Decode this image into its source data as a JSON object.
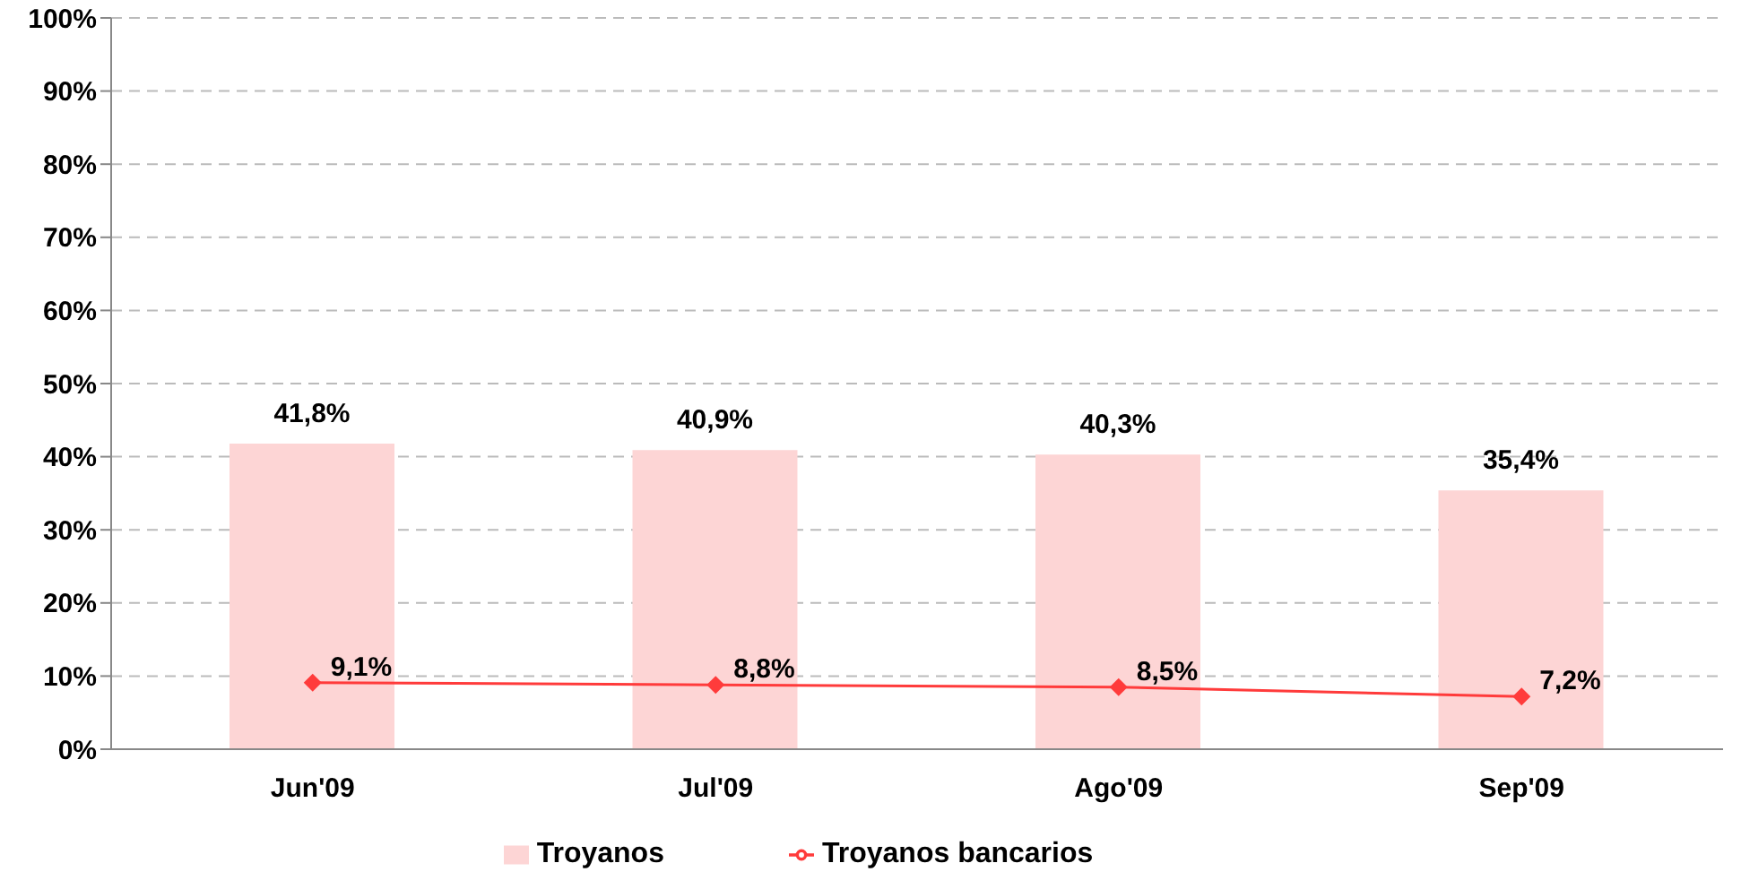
{
  "chart_data": {
    "type": "bar",
    "categories": [
      "Jun'09",
      "Jul'09",
      "Ago'09",
      "Sep'09"
    ],
    "series": [
      {
        "name": "Troyanos",
        "color": "#fdd5d5",
        "values": [
          41.8,
          40.9,
          40.3,
          35.4
        ],
        "value_labels": [
          "41,8%",
          "40,9%",
          "40,3%",
          "35,4%"
        ]
      },
      {
        "name": "Troyanos bancarios",
        "type": "line",
        "color": "#ff3b3b",
        "values": [
          9.1,
          8.8,
          8.5,
          7.2
        ],
        "value_labels": [
          "9,1%",
          "8,8%",
          "8,5%",
          "7,2%"
        ],
        "marker": "diamond",
        "line_style": "solid"
      }
    ],
    "ylim": [
      0,
      100
    ],
    "yticks": [
      {
        "value": 0,
        "label": "0%"
      },
      {
        "value": 10,
        "label": "10%"
      },
      {
        "value": 20,
        "label": "20%"
      },
      {
        "value": 30,
        "label": "30%"
      },
      {
        "value": 40,
        "label": "40%"
      },
      {
        "value": 50,
        "label": "50%"
      },
      {
        "value": 60,
        "label": "60%"
      },
      {
        "value": 70,
        "label": "70%"
      },
      {
        "value": 80,
        "label": "80%"
      },
      {
        "value": 90,
        "label": "90%"
      },
      {
        "value": 100,
        "label": "100%"
      }
    ],
    "grid": "y",
    "legend": "bottom"
  }
}
